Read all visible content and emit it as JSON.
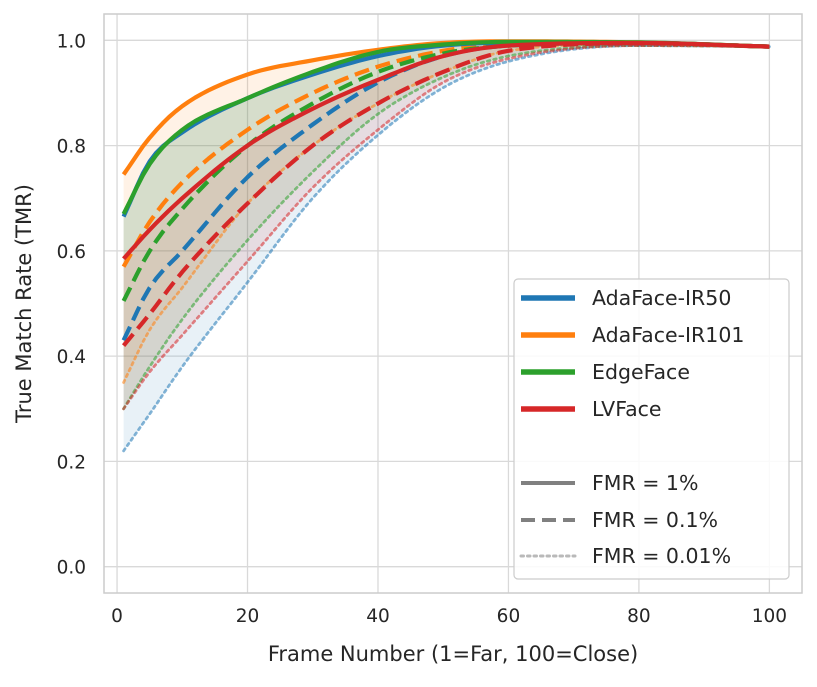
{
  "chart_data": {
    "type": "line",
    "title": "",
    "xlabel": "Frame Number (1=Far, 100=Close)",
    "ylabel": "True Match Rate (TMR)",
    "xlim": [
      -2,
      105
    ],
    "ylim": [
      -0.05,
      1.05
    ],
    "x_ticks": [
      0,
      20,
      40,
      60,
      80,
      100
    ],
    "x_tick_labels": [
      "0",
      "20",
      "40",
      "60",
      "80",
      "100"
    ],
    "y_ticks": [
      0.0,
      0.2,
      0.4,
      0.6,
      0.8,
      1.0
    ],
    "y_tick_labels": [
      "0.0",
      "0.2",
      "0.4",
      "0.6",
      "0.8",
      "1.0"
    ],
    "grid": true,
    "legend_position": "lower-right",
    "shaded_band": "area between FMR = 1% and FMR = 0.01% curves for each model",
    "models": [
      {
        "name": "AdaFace-IR50",
        "color": "#1f77b4"
      },
      {
        "name": "AdaFace-IR101",
        "color": "#ff7f0e"
      },
      {
        "name": "EdgeFace",
        "color": "#2ca02c"
      },
      {
        "name": "LVFace",
        "color": "#d62728"
      }
    ],
    "fmr_levels": [
      {
        "label": "FMR = 1%",
        "dash": "solid"
      },
      {
        "label": "FMR = 0.1%",
        "dash": "dashed"
      },
      {
        "label": "FMR = 0.01%",
        "dash": "dotted"
      }
    ],
    "series": [
      {
        "model": "AdaFace-IR50",
        "fmr": "FMR = 1%",
        "x": [
          1,
          5,
          10,
          20,
          30,
          40,
          50,
          60,
          80,
          100
        ],
        "y": [
          0.665,
          0.77,
          0.825,
          0.89,
          0.935,
          0.97,
          0.99,
          0.995,
          0.995,
          0.988
        ]
      },
      {
        "model": "AdaFace-IR50",
        "fmr": "FMR = 0.1%",
        "x": [
          1,
          5,
          10,
          20,
          30,
          40,
          50,
          60,
          80,
          100
        ],
        "y": [
          0.43,
          0.53,
          0.6,
          0.74,
          0.84,
          0.92,
          0.97,
          0.99,
          0.995,
          0.988
        ]
      },
      {
        "model": "AdaFace-IR50",
        "fmr": "FMR = 0.01%",
        "x": [
          1,
          5,
          10,
          20,
          30,
          40,
          50,
          60,
          80,
          100
        ],
        "y": [
          0.22,
          0.29,
          0.38,
          0.54,
          0.7,
          0.82,
          0.91,
          0.96,
          0.99,
          0.988
        ]
      },
      {
        "model": "AdaFace-IR101",
        "fmr": "FMR = 1%",
        "x": [
          1,
          5,
          10,
          20,
          30,
          40,
          50,
          60,
          80,
          100
        ],
        "y": [
          0.745,
          0.815,
          0.875,
          0.935,
          0.962,
          0.982,
          0.995,
          0.998,
          0.996,
          0.988
        ]
      },
      {
        "model": "AdaFace-IR101",
        "fmr": "FMR = 0.1%",
        "x": [
          1,
          5,
          10,
          20,
          30,
          40,
          50,
          60,
          80,
          100
        ],
        "y": [
          0.57,
          0.655,
          0.73,
          0.83,
          0.9,
          0.95,
          0.98,
          0.994,
          0.995,
          0.988
        ]
      },
      {
        "model": "AdaFace-IR101",
        "fmr": "FMR = 0.01%",
        "x": [
          1,
          5,
          10,
          20,
          30,
          40,
          50,
          60,
          80,
          100
        ],
        "y": [
          0.35,
          0.45,
          0.53,
          0.69,
          0.8,
          0.88,
          0.94,
          0.98,
          0.993,
          0.988
        ]
      },
      {
        "model": "EdgeFace",
        "fmr": "FMR = 1%",
        "x": [
          1,
          5,
          10,
          20,
          30,
          40,
          50,
          60,
          80,
          100
        ],
        "y": [
          0.67,
          0.765,
          0.83,
          0.89,
          0.94,
          0.978,
          0.992,
          0.997,
          0.996,
          0.988
        ]
      },
      {
        "model": "EdgeFace",
        "fmr": "FMR = 0.1%",
        "x": [
          1,
          5,
          10,
          20,
          30,
          40,
          50,
          60,
          80,
          100
        ],
        "y": [
          0.505,
          0.6,
          0.68,
          0.8,
          0.88,
          0.94,
          0.975,
          0.99,
          0.995,
          0.988
        ]
      },
      {
        "model": "EdgeFace",
        "fmr": "FMR = 0.01%",
        "x": [
          1,
          5,
          10,
          20,
          30,
          40,
          50,
          60,
          80,
          100
        ],
        "y": [
          0.3,
          0.38,
          0.47,
          0.62,
          0.75,
          0.86,
          0.93,
          0.97,
          0.99,
          0.988
        ]
      },
      {
        "model": "LVFace",
        "fmr": "FMR = 1%",
        "x": [
          1,
          5,
          10,
          20,
          30,
          40,
          50,
          60,
          80,
          100
        ],
        "y": [
          0.585,
          0.64,
          0.7,
          0.8,
          0.87,
          0.925,
          0.97,
          0.99,
          0.995,
          0.988
        ]
      },
      {
        "model": "LVFace",
        "fmr": "FMR = 0.1%",
        "x": [
          1,
          5,
          10,
          20,
          30,
          40,
          50,
          60,
          80,
          100
        ],
        "y": [
          0.42,
          0.48,
          0.56,
          0.69,
          0.8,
          0.88,
          0.94,
          0.98,
          0.994,
          0.988
        ]
      },
      {
        "model": "LVFace",
        "fmr": "FMR = 0.01%",
        "x": [
          1,
          5,
          10,
          20,
          30,
          40,
          50,
          60,
          80,
          100
        ],
        "y": [
          0.3,
          0.37,
          0.44,
          0.58,
          0.72,
          0.83,
          0.92,
          0.965,
          0.99,
          0.988
        ]
      }
    ]
  }
}
